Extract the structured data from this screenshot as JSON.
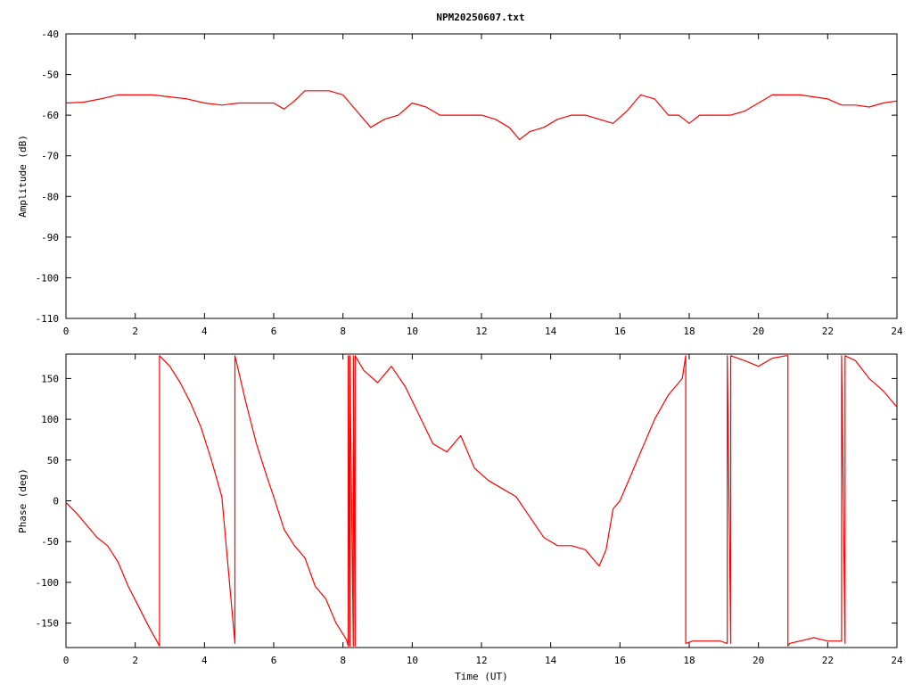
{
  "title": "NPM20250607.txt",
  "colors": {
    "series": "#ff0000",
    "axes": "#000000",
    "background": "#ffffff"
  },
  "chart_data": [
    {
      "type": "line",
      "title": "NPM20250607.txt",
      "xlabel": "",
      "ylabel": "Amplitude (dB)",
      "xlim": [
        0,
        24
      ],
      "ylim": [
        -110,
        -40
      ],
      "x_ticks": [
        "0",
        "2",
        "4",
        "6",
        "8",
        "10",
        "12",
        "14",
        "16",
        "18",
        "20",
        "22",
        "24"
      ],
      "y_ticks": [
        "-40",
        "-50",
        "-60",
        "-70",
        "-80",
        "-90",
        "-100",
        "-110"
      ],
      "grid": false,
      "series": [
        {
          "x": [
            0,
            0.5,
            1.0,
            1.5,
            2.0,
            2.5,
            3.0,
            3.5,
            4.0,
            4.5,
            5.0,
            5.5,
            6.0,
            6.3,
            6.6,
            6.9,
            7.2,
            7.6,
            8.0,
            8.4,
            8.8,
            9.2,
            9.6,
            10.0,
            10.4,
            10.8,
            11.2,
            11.6,
            12.0,
            12.4,
            12.8,
            13.1,
            13.4,
            13.8,
            14.2,
            14.6,
            15.0,
            15.4,
            15.8,
            16.2,
            16.6,
            17.0,
            17.4,
            17.7,
            18.0,
            18.3,
            18.7,
            19.2,
            19.6,
            20.0,
            20.4,
            20.8,
            21.2,
            21.6,
            22.0,
            22.4,
            22.8,
            23.2,
            23.6,
            24.0
          ],
          "y": [
            -57,
            -56.8,
            -56,
            -55,
            -55,
            -55,
            -55.5,
            -56,
            -57,
            -57.5,
            -57,
            -57,
            -57,
            -58.5,
            -56.5,
            -54,
            -54,
            -54,
            -55,
            -59,
            -63,
            -61,
            -60,
            -57,
            -58,
            -60,
            -60,
            -60,
            -60,
            -61,
            -63,
            -66,
            -64,
            -63,
            -61,
            -60,
            -60,
            -61,
            -62,
            -59,
            -55,
            -56,
            -60,
            -60,
            -62,
            -60,
            -60,
            -60,
            -59,
            -57,
            -55,
            -55,
            -55,
            -55.5,
            -56,
            -57.5,
            -57.5,
            -58,
            -57,
            -56.5
          ]
        }
      ]
    },
    {
      "type": "line",
      "title": "",
      "xlabel": "Time (UT)",
      "ylabel": "Phase (deg)",
      "xlim": [
        0,
        24
      ],
      "ylim": [
        -180,
        180
      ],
      "x_ticks": [
        "0",
        "2",
        "4",
        "6",
        "8",
        "10",
        "12",
        "14",
        "16",
        "18",
        "20",
        "22",
        "24"
      ],
      "y_ticks": [
        "150",
        "100",
        "50",
        "0",
        "-50",
        "-100",
        "-150"
      ],
      "grid": false,
      "series": [
        {
          "x": [
            0,
            0.3,
            0.6,
            0.9,
            1.2,
            1.5,
            1.8,
            2.1,
            2.4,
            2.7,
            2.7,
            3.0,
            3.3,
            3.6,
            3.9,
            4.2,
            4.5,
            4.88,
            4.88,
            5.2,
            5.5,
            5.8,
            6.0,
            6.3,
            6.6,
            6.9,
            7.2,
            7.5,
            7.8,
            8.1,
            8.15,
            8.15,
            8.2,
            8.2,
            8.3,
            8.3,
            8.35,
            8.35,
            8.6,
            9.0,
            9.4,
            9.8,
            10.2,
            10.6,
            11.0,
            11.4,
            11.8,
            12.2,
            12.6,
            13.0,
            13.4,
            13.8,
            14.2,
            14.6,
            15.0,
            15.4,
            15.6,
            15.8,
            16.0,
            16.3,
            16.6,
            17.0,
            17.4,
            17.8,
            17.9,
            17.9,
            18.1,
            18.5,
            18.9,
            19.1,
            19.1,
            19.2,
            19.2,
            19.6,
            20.0,
            20.4,
            20.8,
            20.85,
            20.85,
            20.9,
            20.9,
            21.2,
            21.6,
            22.0,
            22.4,
            22.4,
            22.5,
            22.5,
            22.8,
            23.2,
            23.6,
            24.0
          ],
          "y": [
            -2,
            -15,
            -30,
            -45,
            -55,
            -75,
            -105,
            -130,
            -155,
            -178,
            178,
            165,
            145,
            120,
            90,
            50,
            5,
            -175,
            178,
            120,
            70,
            30,
            5,
            -35,
            -55,
            -70,
            -105,
            -120,
            -150,
            -170,
            -178,
            178,
            -178,
            178,
            -178,
            178,
            -178,
            178,
            160,
            145,
            165,
            140,
            105,
            70,
            60,
            80,
            40,
            25,
            15,
            5,
            -20,
            -45,
            -55,
            -55,
            -60,
            -80,
            -60,
            -10,
            0,
            30,
            60,
            100,
            130,
            150,
            178,
            -175,
            -172,
            -172,
            -172,
            -175,
            178,
            -175,
            178,
            172,
            165,
            175,
            178,
            178,
            -178,
            -175,
            -175,
            -172,
            -168,
            -172,
            -172,
            178,
            -175,
            178,
            172,
            150,
            135,
            115
          ]
        }
      ]
    }
  ]
}
